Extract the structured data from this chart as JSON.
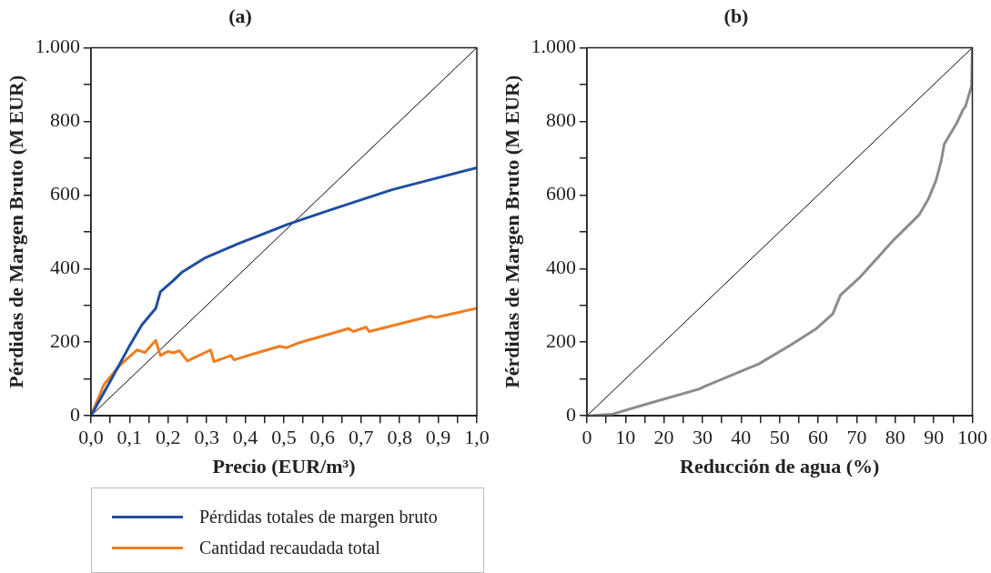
{
  "chart_data": [
    {
      "type": "line",
      "title": "(a)",
      "xlabel": "Precio (EUR/m³)",
      "ylabel": "Pérdidas de Margen Bruto (M EUR)",
      "legend": "bottom",
      "grid": false,
      "marker": "none",
      "line_style": "solid",
      "xlim": [
        0,
        1
      ],
      "ylim": [
        0,
        1000
      ],
      "xticks": [
        {
          "value": 0,
          "label": "0,0"
        },
        {
          "value": 0.05,
          "label": null
        },
        {
          "value": 0.1,
          "label": "0,1"
        },
        {
          "value": 0.15,
          "label": null
        },
        {
          "value": 0.2,
          "label": "0,2"
        },
        {
          "value": 0.25,
          "label": null
        },
        {
          "value": 0.3,
          "label": "0,3"
        },
        {
          "value": 0.35,
          "label": null
        },
        {
          "value": 0.4,
          "label": "0,4"
        },
        {
          "value": 0.45,
          "label": null
        },
        {
          "value": 0.5,
          "label": "0,5"
        },
        {
          "value": 0.55,
          "label": null
        },
        {
          "value": 0.6,
          "label": "0,6"
        },
        {
          "value": 0.65,
          "label": null
        },
        {
          "value": 0.7,
          "label": "0,7"
        },
        {
          "value": 0.75,
          "label": null
        },
        {
          "value": 0.8,
          "label": "0,8"
        },
        {
          "value": 0.85,
          "label": null
        },
        {
          "value": 0.9,
          "label": "0,9"
        },
        {
          "value": 0.95,
          "label": null
        },
        {
          "value": 1,
          "label": "1,0"
        }
      ],
      "yticks": [
        0,
        {
          "value": 100,
          "label": null
        },
        200,
        {
          "value": 300,
          "label": null
        },
        400,
        {
          "value": 500,
          "label": null
        },
        600,
        {
          "value": 700,
          "label": null
        },
        800,
        {
          "value": 900,
          "label": null
        },
        {
          "value": 1000,
          "label": "1.000"
        }
      ],
      "series": [
        {
          "name": "Pérdidas totales de margen bruto",
          "color": "#1f4e9f",
          "x": [
            0,
            0.05,
            0.099,
            0.132,
            0.168,
            0.172,
            0.18,
            0.213,
            0.237,
            0.294,
            0.376,
            0.51,
            0.62,
            0.78,
            1
          ],
          "values": [
            0,
            94,
            188,
            247,
            292,
            307,
            337,
            367,
            391,
            428,
            465,
            520,
            559,
            614,
            674
          ]
        },
        {
          "name": "Cantidad recaudada total",
          "color": "#f07d1f",
          "x": [
            0,
            0.034,
            0.075,
            0.12,
            0.14,
            0.168,
            0.18,
            0.2,
            0.213,
            0.229,
            0.25,
            0.31,
            0.319,
            0.363,
            0.371,
            0.424,
            0.489,
            0.506,
            0.538,
            0.668,
            0.68,
            0.713,
            0.721,
            0.88,
            0.892,
            1
          ],
          "values": [
            0,
            85,
            137,
            179,
            172,
            205,
            164,
            175,
            171,
            177,
            149,
            179,
            147,
            164,
            152,
            169,
            189,
            185,
            198,
            237,
            229,
            241,
            229,
            271,
            267,
            292
          ]
        },
        {
          "color": "#000000",
          "x": [
            0,
            1
          ],
          "values": [
            0,
            1000
          ]
        }
      ]
    },
    {
      "type": "line",
      "title": "(b)",
      "xlabel": "Reducción de agua (%)",
      "ylabel": "Pérdidas de Margen Bruto (M EUR)",
      "grid": false,
      "marker": "none",
      "line_style": "solid",
      "xlim": [
        0,
        100
      ],
      "ylim": [
        0,
        1000
      ],
      "xticks": [
        0,
        {
          "value": 5,
          "label": null
        },
        10,
        {
          "value": 15,
          "label": null
        },
        20,
        {
          "value": 25,
          "label": null
        },
        30,
        {
          "value": 35,
          "label": null
        },
        40,
        {
          "value": 45,
          "label": null
        },
        50,
        {
          "value": 55,
          "label": null
        },
        60,
        {
          "value": 65,
          "label": null
        },
        70,
        {
          "value": 75,
          "label": null
        },
        80,
        {
          "value": 85,
          "label": null
        },
        90,
        {
          "value": 95,
          "label": null
        },
        100
      ],
      "yticks": [
        0,
        {
          "value": 100,
          "label": null
        },
        200,
        {
          "value": 300,
          "label": null
        },
        400,
        {
          "value": 500,
          "label": null
        },
        600,
        {
          "value": 700,
          "label": null
        },
        800,
        {
          "value": 900,
          "label": null
        },
        {
          "value": 1000,
          "label": "1.000"
        }
      ],
      "series": [
        {
          "color": "#8c8c8c",
          "x": [
            0,
            6.4,
            16.1,
            29.2,
            30.8,
            44.6,
            52.8,
            59.3,
            63.8,
            65.8,
            70.7,
            79.6,
            80.9,
            86.2,
            88.6,
            90.6,
            91.9,
            92.7,
            95.9,
            97.6,
            98.2,
            99.2,
            99.8,
            100
          ],
          "values": [
            0,
            4,
            34,
            73,
            81,
            141,
            192,
            235,
            277,
            328,
            375,
            478,
            491,
            546,
            589,
            640,
            691,
            738,
            794,
            832,
            840,
            875,
            896,
            998
          ]
        },
        {
          "color": "#000000",
          "x": [
            0,
            100
          ],
          "values": [
            0,
            1000
          ]
        }
      ]
    }
  ]
}
